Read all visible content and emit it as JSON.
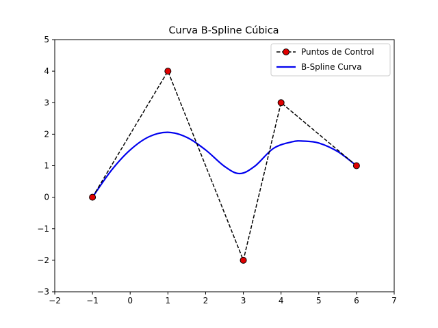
{
  "chart_data": {
    "type": "line",
    "title": "Curva B-Spline Cúbica",
    "xlabel": "",
    "ylabel": "",
    "xlim": [
      -2,
      7
    ],
    "ylim": [
      -3,
      5
    ],
    "xticks": [
      -2,
      -1,
      0,
      1,
      2,
      3,
      4,
      5,
      6,
      7
    ],
    "yticks": [
      -3,
      -2,
      -1,
      0,
      1,
      2,
      3,
      4,
      5
    ],
    "grid": false,
    "legend_position": "top-right",
    "series": [
      {
        "name": "Puntos de Control",
        "style": "dashed-line-with-markers",
        "color": "#000000",
        "marker_color": "#e00000",
        "x": [
          -1,
          1,
          3,
          4,
          6
        ],
        "y": [
          0,
          4,
          -2,
          3,
          1
        ]
      },
      {
        "name": "B-Spline Curva",
        "style": "solid-line",
        "color": "#0000ee",
        "x": [
          -1,
          -0.5,
          0,
          0.5,
          1,
          1.5,
          2,
          2.5,
          2.9,
          3.3,
          3.8,
          4.3,
          4.6,
          5.0,
          5.5,
          6
        ],
        "y": [
          0,
          0.85,
          1.5,
          1.92,
          2.06,
          1.9,
          1.5,
          0.98,
          0.75,
          0.98,
          1.55,
          1.76,
          1.78,
          1.72,
          1.45,
          1
        ]
      }
    ]
  }
}
